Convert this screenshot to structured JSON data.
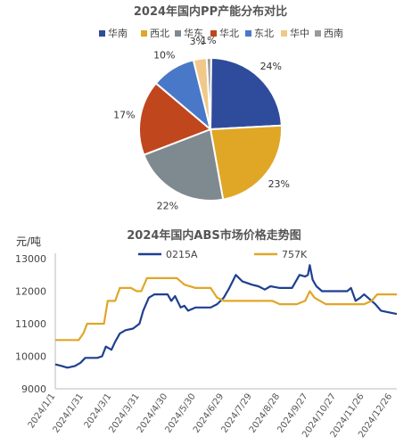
{
  "colors": {
    "华南": "#2f4b9c",
    "西北": "#e0a626",
    "华东": "#7f8a90",
    "华北": "#c0461d",
    "东北": "#4a78c8",
    "华中": "#f0c98a",
    "西南": "#9a9a9a",
    "line_0215A": "#1f3f8f",
    "line_757K": "#e0a626"
  },
  "chart_data": [
    {
      "type": "pie",
      "title": "2024年国内PP产能分布对比",
      "labels": [
        "华南",
        "西北",
        "华东",
        "华北",
        "东北",
        "华中",
        "西南"
      ],
      "values": [
        24,
        23,
        22,
        17,
        10,
        3,
        1
      ],
      "value_labels": [
        "24%",
        "23%",
        "22%",
        "17%",
        "10%",
        "3%",
        "1%"
      ],
      "legend": "top"
    },
    {
      "type": "line",
      "title": "2024年国内ABS市场价格走势图",
      "ylabel": "元/吨",
      "ylim": [
        9000,
        13000
      ],
      "yticks": [
        "9000",
        "10000",
        "11000",
        "12000",
        "13000"
      ],
      "xtick_labels": [
        "2024/1/1",
        "2024/1/31",
        "2024/3/1",
        "2024/3/31",
        "2024/4/30",
        "2024/5/30",
        "2024/6/29",
        "2024/7/29",
        "2024/8/28",
        "2024/9/27",
        "2024/10/27",
        "2024/11/26",
        "2024/12/26"
      ],
      "legend": "top",
      "series": [
        {
          "name": "0215A",
          "points": [
            [
              "2024/1/1",
              9750
            ],
            [
              "2024/1/8",
              9700
            ],
            [
              "2024/1/14",
              9650
            ],
            [
              "2024/1/22",
              9700
            ],
            [
              "2024/1/28",
              9800
            ],
            [
              "2024/2/2",
              9950
            ],
            [
              "2024/2/15",
              9950
            ],
            [
              "2024/2/20",
              10000
            ],
            [
              "2024/2/24",
              10300
            ],
            [
              "2024/3/1",
              10200
            ],
            [
              "2024/3/5",
              10450
            ],
            [
              "2024/3/10",
              10700
            ],
            [
              "2024/3/16",
              10800
            ],
            [
              "2024/3/24",
              10850
            ],
            [
              "2024/3/31",
              11000
            ],
            [
              "2024/4/4",
              11400
            ],
            [
              "2024/4/10",
              11800
            ],
            [
              "2024/4/16",
              11900
            ],
            [
              "2024/4/30",
              11900
            ],
            [
              "2024/5/4",
              11700
            ],
            [
              "2024/5/8",
              11850
            ],
            [
              "2024/5/14",
              11500
            ],
            [
              "2024/5/18",
              11550
            ],
            [
              "2024/5/22",
              11400
            ],
            [
              "2024/5/30",
              11500
            ],
            [
              "2024/6/15",
              11500
            ],
            [
              "2024/6/22",
              11600
            ],
            [
              "2024/6/29",
              11800
            ],
            [
              "2024/7/5",
              12100
            ],
            [
              "2024/7/12",
              12500
            ],
            [
              "2024/7/19",
              12300
            ],
            [
              "2024/7/29",
              12200
            ],
            [
              "2024/8/5",
              12150
            ],
            [
              "2024/8/12",
              12050
            ],
            [
              "2024/8/18",
              12150
            ],
            [
              "2024/8/28",
              12100
            ],
            [
              "2024/9/10",
              12100
            ],
            [
              "2024/9/18",
              12500
            ],
            [
              "2024/9/24",
              12450
            ],
            [
              "2024/9/27",
              12500
            ],
            [
              "2024/9/29",
              12800
            ],
            [
              "2024/10/2",
              12350
            ],
            [
              "2024/10/6",
              12150
            ],
            [
              "2024/10/12",
              12000
            ],
            [
              "2024/10/27",
              12000
            ],
            [
              "2024/11/8",
              12000
            ],
            [
              "2024/11/12",
              12100
            ],
            [
              "2024/11/17",
              11700
            ],
            [
              "2024/11/22",
              11800
            ],
            [
              "2024/11/26",
              11900
            ],
            [
              "2024/12/2",
              11750
            ],
            [
              "2024/12/8",
              11600
            ],
            [
              "2024/12/14",
              11400
            ],
            [
              "2024/12/22",
              11350
            ],
            [
              "2024/12/31",
              11300
            ]
          ]
        },
        {
          "name": "757K",
          "points": [
            [
              "2024/1/1",
              10500
            ],
            [
              "2024/1/26",
              10500
            ],
            [
              "2024/1/31",
              10700
            ],
            [
              "2024/2/4",
              11000
            ],
            [
              "2024/2/15",
              11000
            ],
            [
              "2024/2/22",
              11000
            ],
            [
              "2024/2/26",
              11700
            ],
            [
              "2024/3/5",
              11700
            ],
            [
              "2024/3/10",
              12100
            ],
            [
              "2024/3/22",
              12100
            ],
            [
              "2024/3/28",
              12000
            ],
            [
              "2024/4/2",
              12000
            ],
            [
              "2024/4/8",
              12400
            ],
            [
              "2024/5/10",
              12400
            ],
            [
              "2024/5/18",
              12200
            ],
            [
              "2024/5/30",
              12100
            ],
            [
              "2024/6/15",
              12100
            ],
            [
              "2024/6/22",
              11800
            ],
            [
              "2024/6/29",
              11700
            ],
            [
              "2024/7/15",
              11700
            ],
            [
              "2024/7/29",
              11700
            ],
            [
              "2024/8/20",
              11700
            ],
            [
              "2024/8/28",
              11600
            ],
            [
              "2024/9/15",
              11600
            ],
            [
              "2024/9/24",
              11700
            ],
            [
              "2024/9/29",
              12000
            ],
            [
              "2024/10/4",
              11800
            ],
            [
              "2024/10/10",
              11700
            ],
            [
              "2024/10/16",
              11600
            ],
            [
              "2024/11/26",
              11600
            ],
            [
              "2024/12/4",
              11700
            ],
            [
              "2024/12/10",
              11900
            ],
            [
              "2024/12/31",
              11900
            ]
          ]
        }
      ]
    }
  ]
}
